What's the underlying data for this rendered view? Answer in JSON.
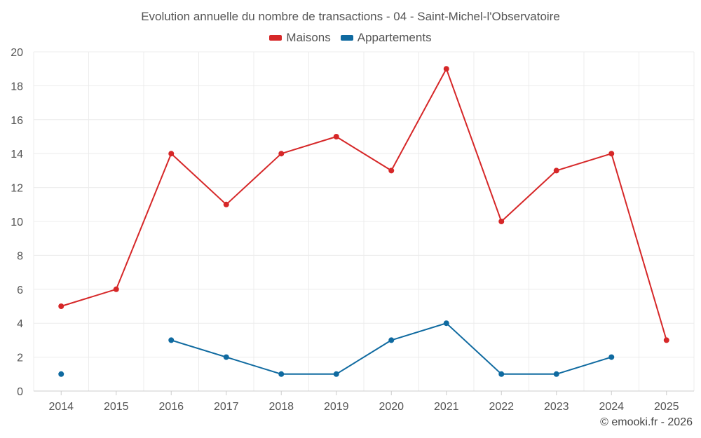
{
  "chart_data": {
    "type": "line",
    "title": "Evolution annuelle du nombre de transactions - 04 - Saint-Michel-l'Observatoire",
    "categories": [
      "2014",
      "2015",
      "2016",
      "2017",
      "2018",
      "2019",
      "2020",
      "2021",
      "2022",
      "2023",
      "2024",
      "2025"
    ],
    "yticks": [
      "0",
      "2",
      "4",
      "6",
      "8",
      "10",
      "12",
      "14",
      "16",
      "18",
      "20"
    ],
    "ylim": [
      0,
      20
    ],
    "grid": true,
    "legend_position": "top-center",
    "series": [
      {
        "name": "Maisons",
        "color": "#d62728",
        "values": [
          5,
          6,
          14,
          11,
          14,
          15,
          13,
          19,
          10,
          13,
          14,
          3
        ]
      },
      {
        "name": "Appartements",
        "color": "#0f6aa0",
        "values": [
          1,
          null,
          3,
          2,
          1,
          1,
          3,
          4,
          1,
          1,
          2,
          null
        ]
      }
    ]
  },
  "credit": "© emooki.fr - 2026"
}
